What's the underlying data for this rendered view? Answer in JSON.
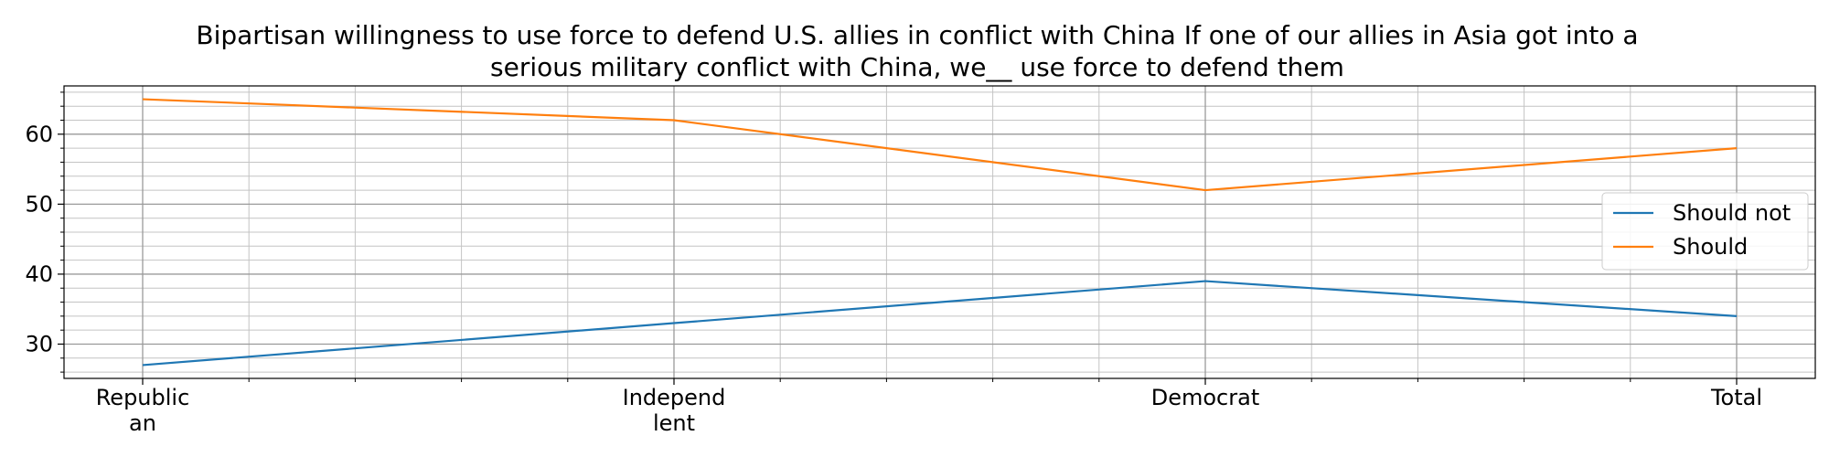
{
  "chart_data": {
    "type": "line",
    "title_lines": [
      "Bipartisan willingness to use force to defend U.S. allies in conflict with China If one of our allies in Asia got into a",
      "serious military conflict with China, we__ use force to defend them"
    ],
    "categories": [
      "Republican",
      "Independent",
      "Democrat",
      "Total"
    ],
    "category_tick_labels": [
      [
        "Republic",
        "an"
      ],
      [
        "Independ",
        "lent"
      ],
      [
        "Democrat"
      ],
      [
        "Total"
      ]
    ],
    "series": [
      {
        "name": "Should not",
        "color": "#1f77b4",
        "values": [
          27,
          33,
          39,
          34
        ]
      },
      {
        "name": "Should",
        "color": "#ff7f0e",
        "values": [
          65,
          62,
          52,
          58
        ]
      }
    ],
    "ylim": [
      25.1,
      66.9
    ],
    "y_major_ticks": [
      30,
      40,
      50,
      60
    ],
    "y_minor_step": 2,
    "x_minor_per_interval": 5,
    "grid": true,
    "legend_position": "center-right"
  }
}
